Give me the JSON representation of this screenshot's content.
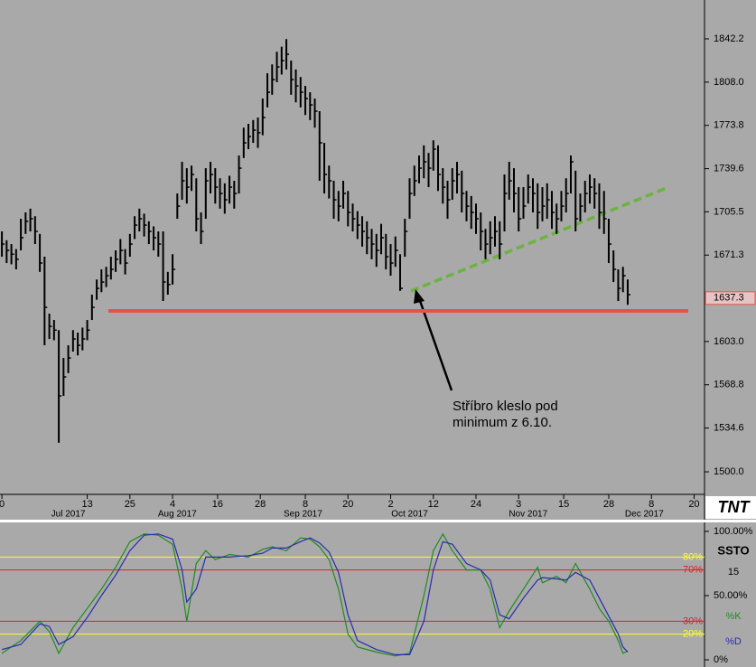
{
  "chart_data": [
    {
      "type": "ohlc",
      "high": [
        1690,
        1683,
        1680,
        1676,
        1700,
        1705,
        1708,
        1702,
        1688,
        1670,
        1625,
        1620,
        1612,
        1590,
        1600,
        1612,
        1610,
        1614,
        1620,
        1640,
        1652,
        1660,
        1662,
        1670,
        1675,
        1684,
        1676,
        1688,
        1702,
        1708,
        1704,
        1698,
        1694,
        1690,
        1690,
        1658,
        1672,
        1720,
        1745,
        1740,
        1742,
        1732,
        1705,
        1740,
        1745,
        1740,
        1732,
        1728,
        1734,
        1730,
        1750,
        1772,
        1775,
        1778,
        1780,
        1795,
        1815,
        1822,
        1832,
        1836,
        1842,
        1825,
        1818,
        1812,
        1805,
        1800,
        1795,
        1785,
        1760,
        1742,
        1730,
        1722,
        1730,
        1722,
        1712,
        1706,
        1702,
        1698,
        1692,
        1688,
        1696,
        1688,
        1680,
        1686,
        1672,
        1700,
        1732,
        1742,
        1750,
        1758,
        1752,
        1762,
        1758,
        1740,
        1730,
        1740,
        1745,
        1738,
        1722,
        1718,
        1712,
        1705,
        1692,
        1698,
        1702,
        1698,
        1735,
        1745,
        1740,
        1725,
        1725,
        1735,
        1732,
        1728,
        1725,
        1728,
        1722,
        1712,
        1722,
        1732,
        1750,
        1738,
        1720,
        1730,
        1735,
        1732,
        1728,
        1722,
        1700,
        1675,
        1660,
        1662,
        1652
      ],
      "low": [
        1670,
        1665,
        1664,
        1660,
        1675,
        1688,
        1690,
        1680,
        1658,
        1600,
        1605,
        1604,
        1523,
        1560,
        1578,
        1595,
        1592,
        1596,
        1604,
        1620,
        1636,
        1642,
        1646,
        1652,
        1658,
        1664,
        1656,
        1670,
        1684,
        1690,
        1686,
        1680,
        1675,
        1670,
        1635,
        1640,
        1648,
        1700,
        1715,
        1712,
        1722,
        1690,
        1680,
        1700,
        1720,
        1712,
        1708,
        1704,
        1712,
        1708,
        1720,
        1748,
        1755,
        1760,
        1756,
        1766,
        1788,
        1798,
        1808,
        1814,
        1818,
        1798,
        1792,
        1788,
        1782,
        1778,
        1772,
        1730,
        1720,
        1716,
        1700,
        1698,
        1708,
        1694,
        1690,
        1684,
        1678,
        1672,
        1668,
        1662,
        1672,
        1660,
        1655,
        1662,
        1643,
        1670,
        1700,
        1718,
        1728,
        1732,
        1725,
        1738,
        1722,
        1712,
        1700,
        1715,
        1720,
        1705,
        1698,
        1692,
        1688,
        1675,
        1668,
        1672,
        1678,
        1668,
        1690,
        1715,
        1705,
        1690,
        1700,
        1712,
        1705,
        1692,
        1698,
        1700,
        1692,
        1688,
        1698,
        1705,
        1720,
        1690,
        1698,
        1705,
        1712,
        1708,
        1692,
        1688,
        1665,
        1650,
        1635,
        1642,
        1632
      ],
      "close": [
        1680,
        1675,
        1672,
        1668,
        1685,
        1698,
        1700,
        1690,
        1665,
        1630,
        1615,
        1612,
        1560,
        1575,
        1590,
        1605,
        1600,
        1605,
        1612,
        1630,
        1645,
        1650,
        1655,
        1660,
        1668,
        1675,
        1665,
        1680,
        1695,
        1700,
        1695,
        1690,
        1685,
        1680,
        1650,
        1648,
        1660,
        1710,
        1730,
        1725,
        1735,
        1700,
        1690,
        1730,
        1735,
        1725,
        1720,
        1715,
        1725,
        1720,
        1740,
        1760,
        1765,
        1770,
        1768,
        1780,
        1800,
        1810,
        1820,
        1825,
        1830,
        1810,
        1805,
        1800,
        1795,
        1790,
        1785,
        1760,
        1735,
        1730,
        1715,
        1710,
        1720,
        1705,
        1700,
        1695,
        1690,
        1685,
        1680,
        1675,
        1685,
        1670,
        1665,
        1675,
        1645,
        1690,
        1720,
        1730,
        1740,
        1745,
        1740,
        1755,
        1735,
        1725,
        1715,
        1730,
        1735,
        1720,
        1710,
        1705,
        1700,
        1690,
        1680,
        1685,
        1690,
        1680,
        1720,
        1730,
        1720,
        1700,
        1710,
        1725,
        1720,
        1705,
        1710,
        1715,
        1705,
        1700,
        1710,
        1720,
        1745,
        1700,
        1710,
        1720,
        1725,
        1720,
        1705,
        1700,
        1680,
        1660,
        1645,
        1655,
        1640
      ],
      "color": "#000000",
      "xlim": [
        -0.4,
        148.2
      ],
      "xticks": [
        {
          "value": 0,
          "label": "0"
        },
        {
          "value": 18,
          "label": "13"
        },
        {
          "value": 27,
          "label": "25"
        },
        {
          "value": 36,
          "label": "4"
        },
        {
          "value": 45.5,
          "label": "16"
        },
        {
          "value": 54.5,
          "label": "28"
        },
        {
          "value": 64,
          "label": "8"
        },
        {
          "value": 73,
          "label": "20"
        },
        {
          "value": 82,
          "label": "2"
        },
        {
          "value": 91,
          "label": "12"
        },
        {
          "value": 100,
          "label": "24"
        },
        {
          "value": 109,
          "label": "3"
        },
        {
          "value": 118.5,
          "label": "15"
        },
        {
          "value": 128,
          "label": "28"
        },
        {
          "value": 137,
          "label": "8"
        },
        {
          "value": 146,
          "label": "20"
        }
      ],
      "month_labels": [
        {
          "value": 14,
          "label": "Jul 2017"
        },
        {
          "value": 37,
          "label": "Aug 2017"
        },
        {
          "value": 63.5,
          "label": "Sep 2017"
        },
        {
          "value": 86,
          "label": "Oct 2017"
        },
        {
          "value": 111,
          "label": "Nov 2017"
        },
        {
          "value": 135.5,
          "label": "Dec 2017"
        }
      ],
      "ylim": [
        1483.6,
        1872.9
      ],
      "yticks": [
        1842.2,
        {
          "value": 1808,
          "label": "1808.0"
        },
        1773.8,
        1739.6,
        1705.5,
        1671.3,
        {
          "value": 1603,
          "label": "1603.0"
        },
        1568.8,
        1534.6,
        {
          "value": 1500,
          "label": "1500.0"
        }
      ],
      "last_price": 1637.3,
      "support_level": 1627.2,
      "support_color": "#e8504a",
      "annotation": [
        "Stříbro kleslo pod",
        "minimum z 6.10."
      ],
      "logo": "TNT"
    },
    {
      "type": "line",
      "title": "SSTO",
      "period": 15,
      "x": [
        0,
        4,
        8,
        10,
        12,
        15,
        18,
        21,
        24,
        27,
        30,
        33,
        36,
        38,
        39,
        41,
        43,
        45,
        48,
        52,
        55,
        57,
        60,
        63,
        65,
        67,
        69,
        71,
        73,
        75,
        79,
        83,
        86,
        89,
        91,
        93,
        95,
        98,
        101,
        103,
        105,
        107,
        110,
        113,
        114,
        117,
        119,
        121,
        124,
        126,
        128,
        130,
        131,
        132
      ],
      "series": [
        {
          "name": "%K",
          "color": "#1e8c1e",
          "values": [
            5,
            15,
            30,
            22,
            5,
            25,
            40,
            55,
            72,
            92,
            98,
            97,
            90,
            55,
            30,
            75,
            85,
            78,
            82,
            80,
            86,
            88,
            85,
            95,
            94,
            88,
            78,
            55,
            20,
            10,
            6,
            3,
            5,
            50,
            85,
            98,
            85,
            70,
            70,
            55,
            25,
            38,
            55,
            72,
            60,
            65,
            60,
            75,
            55,
            40,
            30,
            15,
            5,
            7
          ]
        },
        {
          "name": "%D",
          "color": "#2a2ab0",
          "values": [
            8,
            12,
            28,
            26,
            12,
            18,
            33,
            50,
            66,
            85,
            97,
            98,
            94,
            70,
            45,
            55,
            80,
            80,
            80,
            81,
            83,
            87,
            87,
            92,
            95,
            91,
            84,
            68,
            35,
            15,
            8,
            4,
            4,
            30,
            70,
            92,
            90,
            75,
            70,
            62,
            35,
            32,
            48,
            62,
            64,
            63,
            62,
            68,
            62,
            48,
            34,
            20,
            10,
            6
          ]
        }
      ],
      "xlim": [
        -0.4,
        148.2
      ],
      "ylim": [
        -5.6,
        107
      ],
      "yticks": [
        {
          "value": 100,
          "label": "100.00%"
        },
        {
          "value": 50,
          "label": "50.00%"
        },
        {
          "value": 0,
          "label": "0%"
        }
      ],
      "levels": [
        {
          "value": 80,
          "label": "80%",
          "color": "#ffff33"
        },
        {
          "value": 70,
          "label": "70%",
          "color": "#e02020"
        },
        {
          "value": 30,
          "label": "30%",
          "color": "#e02020"
        },
        {
          "value": 20,
          "label": "20%",
          "color": "#ffff33"
        }
      ]
    }
  ]
}
